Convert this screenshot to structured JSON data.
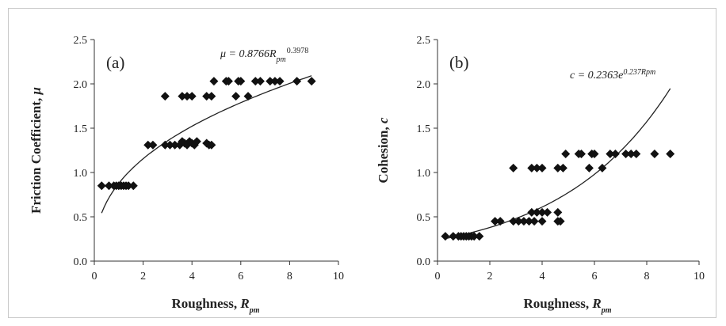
{
  "chart_data": [
    {
      "type": "scatter",
      "panel_label": "(a)",
      "ylabel_main": "Friction Coefficient, ",
      "ylabel_symbol": "μ",
      "xlabel_main": "Roughness, ",
      "xlabel_symbol": "R",
      "xlabel_sub": "pm",
      "xlim": [
        0,
        10
      ],
      "ylim": [
        0,
        2.5
      ],
      "xticks": [
        "0",
        "2",
        "4",
        "6",
        "8",
        "10"
      ],
      "yticks": [
        "0.0",
        "0.5",
        "1.0",
        "1.5",
        "2.0",
        "2.5"
      ],
      "fit": {
        "model": "power",
        "a": 0.8766,
        "b": 0.3978,
        "x_range": [
          0.3,
          8.9
        ],
        "eq_lhs": "μ = 0.8766",
        "eq_R": "R",
        "eq_sub": "pm",
        "eq_exp": "0.3978"
      },
      "points": [
        [
          0.3,
          0.85
        ],
        [
          0.6,
          0.85
        ],
        [
          0.8,
          0.85
        ],
        [
          0.9,
          0.85
        ],
        [
          1.0,
          0.85
        ],
        [
          1.1,
          0.85
        ],
        [
          1.2,
          0.85
        ],
        [
          1.3,
          0.85
        ],
        [
          1.4,
          0.85
        ],
        [
          1.6,
          0.85
        ],
        [
          2.2,
          1.31
        ],
        [
          2.4,
          1.31
        ],
        [
          2.9,
          1.31
        ],
        [
          3.1,
          1.31
        ],
        [
          3.3,
          1.31
        ],
        [
          3.5,
          1.31
        ],
        [
          3.6,
          1.35
        ],
        [
          3.7,
          1.33
        ],
        [
          3.8,
          1.31
        ],
        [
          3.9,
          1.35
        ],
        [
          4.0,
          1.33
        ],
        [
          4.1,
          1.31
        ],
        [
          4.2,
          1.35
        ],
        [
          4.6,
          1.33
        ],
        [
          4.7,
          1.31
        ],
        [
          4.8,
          1.31
        ],
        [
          2.9,
          1.86
        ],
        [
          3.6,
          1.86
        ],
        [
          3.8,
          1.86
        ],
        [
          4.0,
          1.86
        ],
        [
          4.6,
          1.86
        ],
        [
          4.8,
          1.86
        ],
        [
          5.8,
          1.86
        ],
        [
          6.3,
          1.86
        ],
        [
          4.9,
          2.03
        ],
        [
          5.4,
          2.03
        ],
        [
          5.5,
          2.03
        ],
        [
          5.9,
          2.03
        ],
        [
          6.0,
          2.03
        ],
        [
          6.6,
          2.03
        ],
        [
          6.8,
          2.03
        ],
        [
          7.2,
          2.03
        ],
        [
          7.4,
          2.03
        ],
        [
          7.6,
          2.03
        ],
        [
          8.3,
          2.03
        ],
        [
          8.9,
          2.03
        ]
      ]
    },
    {
      "type": "scatter",
      "panel_label": "(b)",
      "ylabel_main": "Cohesion, ",
      "ylabel_symbol": "c",
      "xlabel_main": "Roughness, ",
      "xlabel_symbol": "R",
      "xlabel_sub": "pm",
      "xlim": [
        0,
        10
      ],
      "ylim": [
        0,
        2.5
      ],
      "xticks": [
        "0",
        "2",
        "4",
        "6",
        "8",
        "10"
      ],
      "yticks": [
        "0.0",
        "0.5",
        "1.0",
        "1.5",
        "2.0",
        "2.5"
      ],
      "fit": {
        "model": "exponential",
        "a": 0.2363,
        "b": 0.237,
        "x_range": [
          0.3,
          8.9
        ],
        "eq_lhs": "c = 0.2363e",
        "eq_exp": "0.237Rpm"
      },
      "points": [
        [
          0.3,
          0.28
        ],
        [
          0.6,
          0.28
        ],
        [
          0.8,
          0.28
        ],
        [
          0.9,
          0.28
        ],
        [
          1.0,
          0.28
        ],
        [
          1.1,
          0.28
        ],
        [
          1.2,
          0.28
        ],
        [
          1.3,
          0.28
        ],
        [
          1.4,
          0.28
        ],
        [
          1.6,
          0.28
        ],
        [
          2.2,
          0.45
        ],
        [
          2.4,
          0.45
        ],
        [
          2.9,
          0.45
        ],
        [
          3.1,
          0.45
        ],
        [
          3.3,
          0.45
        ],
        [
          3.5,
          0.45
        ],
        [
          3.7,
          0.45
        ],
        [
          4.0,
          0.45
        ],
        [
          4.6,
          0.45
        ],
        [
          4.7,
          0.45
        ],
        [
          3.6,
          0.55
        ],
        [
          3.8,
          0.55
        ],
        [
          4.0,
          0.55
        ],
        [
          4.2,
          0.55
        ],
        [
          4.6,
          0.55
        ],
        [
          2.9,
          1.05
        ],
        [
          3.6,
          1.05
        ],
        [
          3.8,
          1.05
        ],
        [
          4.0,
          1.05
        ],
        [
          4.6,
          1.05
        ],
        [
          4.8,
          1.05
        ],
        [
          5.8,
          1.05
        ],
        [
          6.3,
          1.05
        ],
        [
          4.9,
          1.21
        ],
        [
          5.4,
          1.21
        ],
        [
          5.5,
          1.21
        ],
        [
          5.9,
          1.21
        ],
        [
          6.0,
          1.21
        ],
        [
          6.6,
          1.21
        ],
        [
          6.8,
          1.21
        ],
        [
          7.2,
          1.21
        ],
        [
          7.4,
          1.21
        ],
        [
          7.6,
          1.21
        ],
        [
          8.3,
          1.21
        ],
        [
          8.9,
          1.21
        ]
      ]
    }
  ]
}
